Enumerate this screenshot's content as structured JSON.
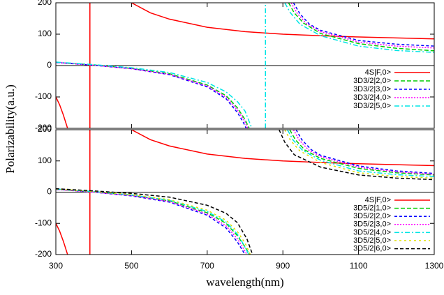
{
  "chart_data": [
    {
      "type": "line",
      "ylabel": "Polarizability(a.u.)",
      "xlim": [
        300,
        1300
      ],
      "xticks": [
        300,
        500,
        700,
        900,
        1100,
        1300
      ],
      "ylim": [
        -200,
        200
      ],
      "yticks": [
        -200,
        -100,
        0,
        100,
        200
      ],
      "zero_line": true,
      "series": [
        {
          "name": "4S|F,0>",
          "color": "#ff0000",
          "x": [
            300,
            310,
            320,
            331,
            360,
            390,
            390,
            450,
            500,
            550,
            600,
            700,
            800,
            900,
            1000,
            1100,
            1200,
            1300
          ],
          "values": [
            -100,
            -125,
            -158,
            -200,
            null,
            -200,
            200,
            null,
            200,
            168,
            148,
            122,
            108,
            100,
            95,
            91,
            88,
            85
          ]
        },
        {
          "name": "3D3/2|2,0>",
          "color": "#00cc00",
          "x": [
            300,
            400,
            500,
            600,
            700,
            750,
            780,
            800,
            811,
            860,
            915,
            930,
            955,
            1000,
            1100,
            1200,
            1300
          ],
          "values": [
            10,
            2,
            -9,
            -26,
            -62,
            -96,
            -135,
            -172,
            -200,
            null,
            200,
            168,
            135,
            102,
            70,
            55,
            47
          ]
        },
        {
          "name": "3D3/2|3,0>",
          "color": "#0000ff",
          "x": [
            300,
            400,
            500,
            600,
            700,
            750,
            780,
            795,
            803,
            860,
            928,
            945,
            970,
            1000,
            1100,
            1200,
            1300
          ],
          "values": [
            10,
            1,
            -10,
            -29,
            -68,
            -106,
            -150,
            -180,
            -200,
            null,
            200,
            165,
            132,
            112,
            80,
            68,
            62
          ]
        },
        {
          "name": "3D3/2|4,0>",
          "color": "#ff00ff",
          "x": [
            300,
            400,
            500,
            600,
            700,
            750,
            780,
            798,
            807,
            860,
            922,
            938,
            962,
            1000,
            1100,
            1200,
            1300
          ],
          "values": [
            10,
            1,
            -10,
            -28,
            -65,
            -101,
            -142,
            -175,
            -200,
            null,
            200,
            166,
            134,
            108,
            75,
            62,
            56
          ]
        },
        {
          "name": "3D3/2|5,0>",
          "color": "#00e5e5",
          "x": [
            300,
            400,
            500,
            600,
            700,
            750,
            780,
            800,
            818,
            836,
            854,
            854,
            880,
            905,
            920,
            945,
            1000,
            1100,
            1200,
            1300
          ],
          "values": [
            11,
            3,
            -7,
            -22,
            -54,
            -84,
            -115,
            -145,
            -200,
            null,
            -200,
            200,
            null,
            200,
            168,
            132,
            95,
            62,
            48,
            42
          ]
        }
      ]
    },
    {
      "type": "line",
      "xlabel": "wavelength(nm)",
      "xlim": [
        300,
        1300
      ],
      "xticks": [
        300,
        500,
        700,
        900,
        1100,
        1300
      ],
      "ylim": [
        -200,
        200
      ],
      "yticks": [
        -200,
        -100,
        0,
        100,
        200
      ],
      "zero_line": true,
      "series": [
        {
          "name": "4S|F,0>",
          "color": "#ff0000",
          "x": [
            300,
            310,
            320,
            331,
            360,
            390,
            390,
            450,
            500,
            550,
            600,
            700,
            800,
            900,
            1000,
            1100,
            1200,
            1300
          ],
          "values": [
            -100,
            -125,
            -158,
            -200,
            null,
            -200,
            200,
            null,
            200,
            168,
            148,
            122,
            108,
            100,
            95,
            91,
            88,
            85
          ]
        },
        {
          "name": "3D5/2|1,0>",
          "color": "#00cc00",
          "x": [
            300,
            400,
            500,
            600,
            700,
            750,
            780,
            797,
            812,
            860,
            918,
            933,
            958,
            1000,
            1100,
            1200,
            1300
          ],
          "values": [
            9,
            1,
            -10,
            -28,
            -66,
            -100,
            -140,
            -170,
            -200,
            null,
            200,
            168,
            135,
            108,
            76,
            62,
            55
          ]
        },
        {
          "name": "3D5/2|2,0>",
          "color": "#0000ff",
          "x": [
            300,
            400,
            500,
            600,
            700,
            750,
            780,
            790,
            800,
            860,
            935,
            950,
            975,
            1000,
            1100,
            1200,
            1300
          ],
          "values": [
            9,
            0,
            -12,
            -32,
            -74,
            -115,
            -160,
            -180,
            -200,
            null,
            200,
            168,
            136,
            118,
            84,
            68,
            60
          ]
        },
        {
          "name": "3D5/2|3,0>",
          "color": "#ff00ff",
          "x": [
            300,
            400,
            500,
            600,
            700,
            750,
            780,
            793,
            805,
            860,
            928,
            943,
            968,
            1000,
            1100,
            1200,
            1300
          ],
          "values": [
            9,
            0,
            -11,
            -30,
            -70,
            -108,
            -150,
            -175,
            -200,
            null,
            200,
            167,
            135,
            114,
            80,
            65,
            57
          ]
        },
        {
          "name": "3D5/2|4,0>",
          "color": "#00e5e5",
          "x": [
            300,
            400,
            500,
            600,
            700,
            750,
            780,
            795,
            810,
            860,
            912,
            927,
            952,
            1000,
            1100,
            1200,
            1300
          ],
          "values": [
            10,
            2,
            -9,
            -26,
            -62,
            -96,
            -135,
            -165,
            -200,
            null,
            200,
            167,
            134,
            102,
            68,
            56,
            50
          ]
        },
        {
          "name": "3D5/2|5,0>",
          "color": "#e0e000",
          "x": [
            300,
            400,
            500,
            600,
            700,
            750,
            780,
            800,
            814,
            860,
            905,
            920,
            945,
            1000,
            1100,
            1200,
            1300
          ],
          "values": [
            10,
            2,
            -8,
            -24,
            -58,
            -90,
            -127,
            -163,
            -200,
            null,
            200,
            166,
            132,
            95,
            62,
            50,
            45
          ]
        },
        {
          "name": "3D5/2|6,0>",
          "color": "#000000",
          "x": [
            300,
            400,
            500,
            600,
            700,
            750,
            780,
            805,
            820,
            860,
            890,
            905,
            930,
            1000,
            1100,
            1200,
            1300
          ],
          "values": [
            11,
            4,
            -4,
            -16,
            -42,
            -68,
            -98,
            -150,
            -200,
            null,
            200,
            160,
            120,
            80,
            55,
            45,
            40
          ]
        }
      ]
    }
  ]
}
